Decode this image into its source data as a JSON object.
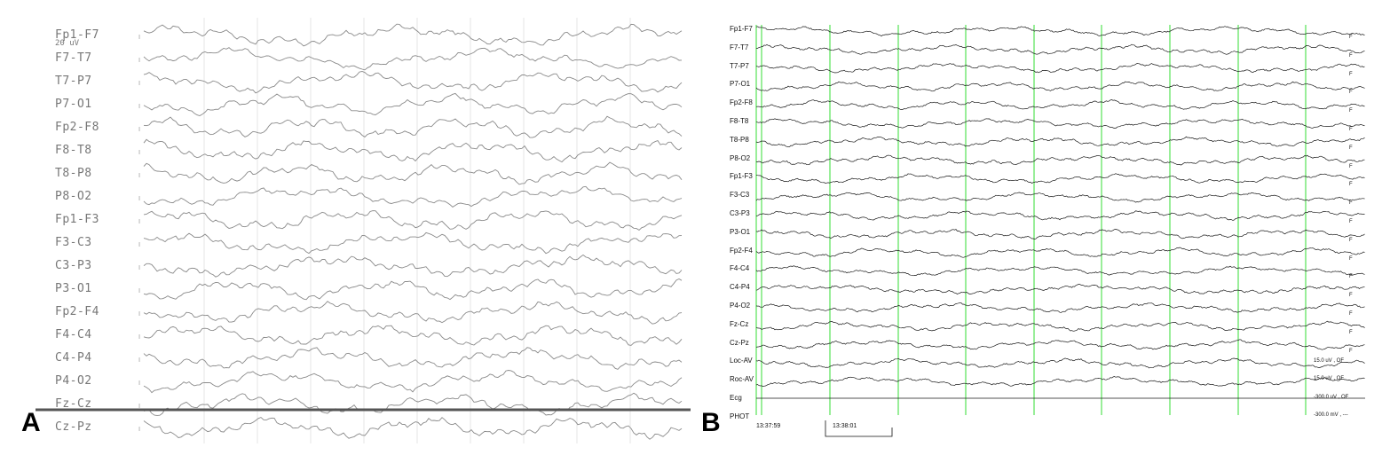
{
  "panel_a": {
    "letter": "A",
    "scale_label": "20 uV",
    "channels": [
      "Fp1-F7",
      "F7-T7",
      "T7-P7",
      "P7-O1",
      "Fp2-F8",
      "F8-T8",
      "T8-P8",
      "P8-O2",
      "Fp1-F3",
      "F3-C3",
      "C3-P3",
      "P3-O1",
      "Fp2-F4",
      "F4-C4",
      "C4-P4",
      "P4-O2",
      "Fz-Cz",
      "Cz-Pz"
    ]
  },
  "panel_b": {
    "letter": "B",
    "channels": [
      "Fp1-F7",
      "F7-T7",
      "T7-P7",
      "P7-O1",
      "Fp2-F8",
      "F8-T8",
      "T8-P8",
      "P8-O2",
      "Fp1-F3",
      "F3-C3",
      "C3-P3",
      "P3-O1",
      "Fp2-F4",
      "F4-C4",
      "C4-P4",
      "P4-O2",
      "Fz-Cz",
      "Cz-Pz",
      "Loc-AV",
      "Roc-AV",
      "Ecg",
      "PHOT"
    ],
    "filter_flag": "F",
    "sens_loc": "15.0 uV , OF",
    "sens_roc": "15.0 uV , OF",
    "sens_ecg": "-300.0 uV , OF",
    "sens_phot": "-300.0 mV , ---",
    "time_start": "13:37:59",
    "time_next": "13:38:01"
  },
  "colors": {
    "trace_a": "#8a8a8a",
    "trace_b": "#1a1a1a",
    "marker_b": "#33dd33"
  }
}
